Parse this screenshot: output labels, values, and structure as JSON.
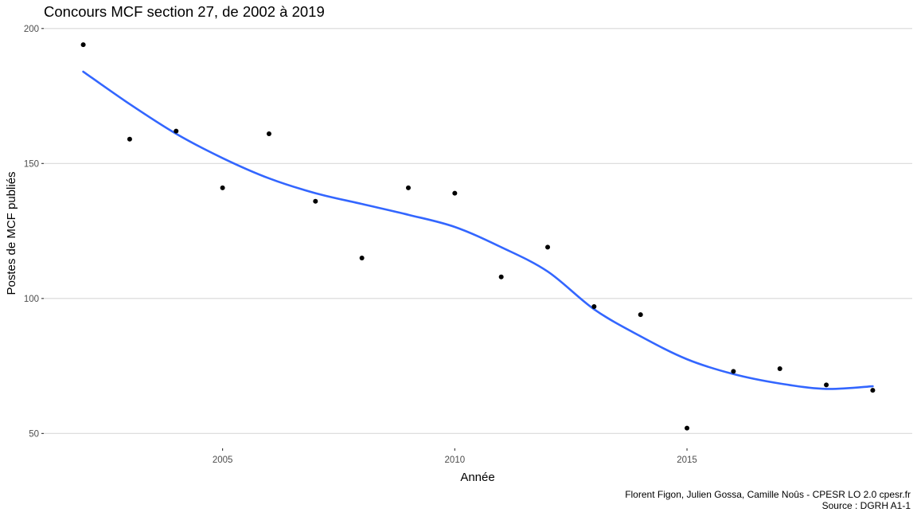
{
  "chart_data": {
    "type": "scatter",
    "title": "Concours MCF section 27, de 2002 à 2019",
    "xlabel": "Année",
    "ylabel": "Postes de MCF publiés",
    "xlim": [
      2001.15,
      2019.85
    ],
    "ylim": [
      44.5,
      202
    ],
    "x_ticks": [
      2005,
      2010,
      2015
    ],
    "y_ticks": [
      50,
      100,
      150,
      200
    ],
    "x_tick_labels": [
      "2005",
      "2010",
      "2015"
    ],
    "y_tick_labels": [
      "50",
      "100",
      "150",
      "200"
    ],
    "grid": "horizontal",
    "colors": {
      "points": "#000000",
      "smooth": "#3366ff",
      "grid": "#d9d9d9"
    },
    "points": [
      {
        "x": 2002,
        "y": 194
      },
      {
        "x": 2003,
        "y": 159
      },
      {
        "x": 2004,
        "y": 162
      },
      {
        "x": 2005,
        "y": 141
      },
      {
        "x": 2006,
        "y": 161
      },
      {
        "x": 2007,
        "y": 136
      },
      {
        "x": 2008,
        "y": 115
      },
      {
        "x": 2009,
        "y": 141
      },
      {
        "x": 2010,
        "y": 139
      },
      {
        "x": 2011,
        "y": 108
      },
      {
        "x": 2012,
        "y": 119
      },
      {
        "x": 2013,
        "y": 97
      },
      {
        "x": 2014,
        "y": 94
      },
      {
        "x": 2015,
        "y": 52
      },
      {
        "x": 2016,
        "y": 73
      },
      {
        "x": 2017,
        "y": 74
      },
      {
        "x": 2018,
        "y": 68
      },
      {
        "x": 2019,
        "y": 66
      }
    ],
    "smooth_line": [
      {
        "x": 2002,
        "y": 184
      },
      {
        "x": 2003,
        "y": 172
      },
      {
        "x": 2004,
        "y": 161
      },
      {
        "x": 2005,
        "y": 152
      },
      {
        "x": 2006,
        "y": 144.5
      },
      {
        "x": 2007,
        "y": 139
      },
      {
        "x": 2008,
        "y": 135
      },
      {
        "x": 2009,
        "y": 131
      },
      {
        "x": 2010,
        "y": 126.5
      },
      {
        "x": 2011,
        "y": 119
      },
      {
        "x": 2012,
        "y": 110
      },
      {
        "x": 2013,
        "y": 96
      },
      {
        "x": 2014,
        "y": 86
      },
      {
        "x": 2015,
        "y": 77.5
      },
      {
        "x": 2016,
        "y": 72
      },
      {
        "x": 2017,
        "y": 68.5
      },
      {
        "x": 2018,
        "y": 66.5
      },
      {
        "x": 2019,
        "y": 67.5
      }
    ],
    "caption": [
      "Florent Figon, Julien Gossa, Camille Noûs - CPESR LO 2.0 cpesr.fr",
      "Source : DGRH A1-1"
    ]
  }
}
